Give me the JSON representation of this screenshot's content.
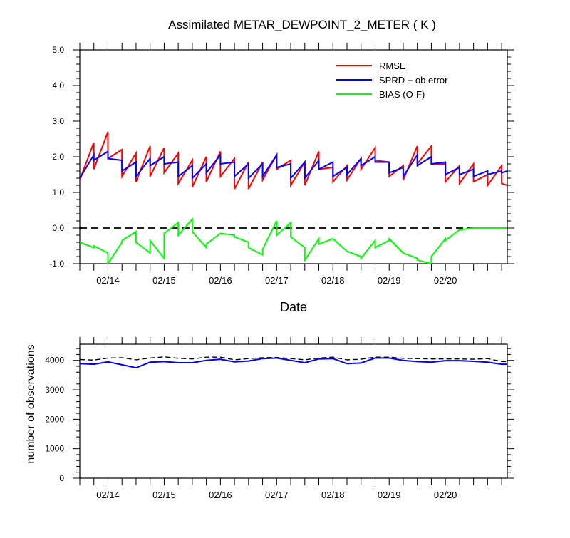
{
  "chart_data": [
    {
      "type": "line",
      "title": "Assimilated METAR_DEWPOINT_2_METER ( K )",
      "xlabel": "Date",
      "ylabel": "",
      "xlim": [
        0,
        7.6
      ],
      "ylim": [
        -1.0,
        5.0
      ],
      "y_ticks": [
        "5.0",
        "4.0",
        "3.0",
        "2.0",
        "1.0",
        "0.0",
        "-1.0"
      ],
      "y_tick_values": [
        5,
        4,
        3,
        2,
        1,
        0,
        -1
      ],
      "x_tick_labels": [
        "02/14",
        "02/15",
        "02/16",
        "02/17",
        "02/18",
        "02/19",
        "02/20"
      ],
      "x_tick_values": [
        0.5,
        1.5,
        2.5,
        3.5,
        4.5,
        5.5,
        6.5
      ],
      "legend_position": "top-right",
      "reference_line": 0.0,
      "colors": {
        "rmse": "#ff0000",
        "sprd": "#0000ff",
        "bias": "#00ff00",
        "reference": "#000000"
      },
      "series": [
        {
          "name": "RMSE",
          "x": [
            0.0,
            0.25,
            0.25,
            0.5,
            0.5,
            0.75,
            0.75,
            1.0,
            1.0,
            1.25,
            1.25,
            1.5,
            1.5,
            1.75,
            1.75,
            2.0,
            2.0,
            2.25,
            2.25,
            2.5,
            2.5,
            2.75,
            2.75,
            3.0,
            3.0,
            3.25,
            3.25,
            3.5,
            3.5,
            3.75,
            3.75,
            4.0,
            4.0,
            4.25,
            4.25,
            4.5,
            4.5,
            4.75,
            4.75,
            5.0,
            5.0,
            5.25,
            5.25,
            5.5,
            5.5,
            5.75,
            5.75,
            6.0,
            6.0,
            6.25,
            6.25,
            6.5,
            6.5,
            6.75,
            6.75,
            7.0,
            7.0,
            7.25,
            7.25,
            7.5,
            7.5,
            7.6
          ],
          "values": [
            1.35,
            2.4,
            1.65,
            2.7,
            1.95,
            2.2,
            1.45,
            2.1,
            1.3,
            2.3,
            1.45,
            2.25,
            1.55,
            2.1,
            1.25,
            1.9,
            1.15,
            2.0,
            1.3,
            2.15,
            1.45,
            1.95,
            1.1,
            1.85,
            1.1,
            1.85,
            1.35,
            2.05,
            1.65,
            1.9,
            1.2,
            1.85,
            1.2,
            2.15,
            1.65,
            1.7,
            1.3,
            1.75,
            1.35,
            1.95,
            1.65,
            2.25,
            1.9,
            1.85,
            1.45,
            1.75,
            1.35,
            2.3,
            1.8,
            2.3,
            1.8,
            1.8,
            1.3,
            1.75,
            1.25,
            1.8,
            1.3,
            1.5,
            1.2,
            1.75,
            1.25,
            1.2
          ]
        },
        {
          "name": "SPRD + ob error",
          "x": [
            0.0,
            0.25,
            0.25,
            0.5,
            0.5,
            0.75,
            0.75,
            1.0,
            1.0,
            1.25,
            1.25,
            1.5,
            1.5,
            1.75,
            1.75,
            2.0,
            2.0,
            2.25,
            2.25,
            2.5,
            2.5,
            2.75,
            2.75,
            3.0,
            3.0,
            3.25,
            3.25,
            3.5,
            3.5,
            3.75,
            3.75,
            4.0,
            4.0,
            4.25,
            4.25,
            4.5,
            4.5,
            4.75,
            4.75,
            5.0,
            5.0,
            5.25,
            5.25,
            5.5,
            5.5,
            5.75,
            5.75,
            6.0,
            6.0,
            6.25,
            6.25,
            6.5,
            6.5,
            6.75,
            6.75,
            7.0,
            7.0,
            7.25,
            7.25,
            7.5,
            7.5,
            7.6
          ],
          "values": [
            1.4,
            2.05,
            1.9,
            2.15,
            1.95,
            1.9,
            1.6,
            1.85,
            1.45,
            1.95,
            1.75,
            2.0,
            1.8,
            1.85,
            1.45,
            1.75,
            1.4,
            1.8,
            1.55,
            2.05,
            1.8,
            1.85,
            1.45,
            1.8,
            1.4,
            1.8,
            1.45,
            2.05,
            1.7,
            1.8,
            1.4,
            1.85,
            1.4,
            1.9,
            1.65,
            1.85,
            1.45,
            1.7,
            1.5,
            1.95,
            1.75,
            2.0,
            1.85,
            1.85,
            1.55,
            1.7,
            1.45,
            2.05,
            1.75,
            2.0,
            1.8,
            1.85,
            1.5,
            1.7,
            1.5,
            1.65,
            1.45,
            1.6,
            1.5,
            1.6,
            1.55,
            1.6
          ]
        },
        {
          "name": "BIAS (O-F)",
          "x": [
            0.0,
            0.25,
            0.25,
            0.5,
            0.5,
            0.75,
            0.75,
            1.0,
            1.0,
            1.25,
            1.25,
            1.5,
            1.5,
            1.75,
            1.75,
            2.0,
            2.0,
            2.25,
            2.25,
            2.5,
            2.5,
            2.75,
            2.75,
            3.0,
            3.0,
            3.25,
            3.25,
            3.5,
            3.5,
            3.75,
            3.75,
            4.0,
            4.0,
            4.25,
            4.25,
            4.5,
            4.5,
            4.75,
            4.75,
            5.0,
            5.0,
            5.25,
            5.25,
            5.5,
            5.5,
            5.75,
            5.75,
            6.0,
            6.0,
            6.25,
            6.25,
            6.5,
            6.5,
            6.75,
            6.75,
            7.0,
            7.0,
            7.25,
            7.25,
            7.5,
            7.5,
            7.6
          ],
          "values": [
            -0.4,
            -0.55,
            -0.5,
            -0.7,
            -1.0,
            -0.4,
            -0.35,
            -0.1,
            -0.4,
            -0.7,
            -0.35,
            -0.85,
            -0.15,
            0.15,
            -0.2,
            0.25,
            -0.1,
            -0.55,
            -0.45,
            -0.15,
            -0.15,
            -0.2,
            -0.25,
            -0.4,
            -0.55,
            -0.75,
            -0.6,
            0.2,
            -0.2,
            0.15,
            -0.25,
            -0.55,
            -0.9,
            -0.3,
            -0.45,
            -0.3,
            -0.3,
            -0.65,
            -0.65,
            -0.8,
            -0.85,
            -0.35,
            -0.55,
            -0.35,
            -0.3,
            -0.7,
            -0.7,
            -0.85,
            -0.9,
            -1.0,
            -0.8,
            -0.3,
            -0.35,
            -0.05,
            -0.05,
            0.0,
            0.0,
            0.0,
            0.0,
            0.0,
            0.0,
            0.0
          ]
        }
      ]
    },
    {
      "type": "line",
      "title": "",
      "xlabel": "",
      "ylabel": "number of observations",
      "xlim": [
        0,
        7.6
      ],
      "ylim": [
        0,
        4550
      ],
      "y_ticks": [
        "4000",
        "3000",
        "2000",
        "1000",
        "0"
      ],
      "y_tick_values": [
        4000,
        3000,
        2000,
        1000,
        0
      ],
      "x_tick_labels": [
        "02/14",
        "02/15",
        "02/16",
        "02/17",
        "02/18",
        "02/19",
        "02/20"
      ],
      "x_tick_values": [
        0.5,
        1.5,
        2.5,
        3.5,
        4.5,
        5.5,
        6.5
      ],
      "colors": {
        "used": "#0000ff",
        "possible": "#000000"
      },
      "series": [
        {
          "line_style": "solid",
          "x": [
            0.0,
            0.25,
            0.5,
            0.75,
            1.0,
            1.25,
            1.5,
            1.75,
            2.0,
            2.25,
            2.5,
            2.75,
            3.0,
            3.25,
            3.5,
            3.75,
            4.0,
            4.25,
            4.5,
            4.75,
            5.0,
            5.25,
            5.5,
            5.75,
            6.0,
            6.25,
            6.5,
            6.75,
            7.0,
            7.25,
            7.5,
            7.6
          ],
          "values": [
            3890,
            3870,
            3950,
            3850,
            3750,
            3940,
            3960,
            3920,
            3920,
            4000,
            4040,
            3950,
            3980,
            4060,
            4080,
            4000,
            3920,
            4050,
            4060,
            3890,
            3910,
            4080,
            4080,
            4000,
            3960,
            3940,
            3990,
            3990,
            3970,
            3940,
            3870,
            3870
          ]
        },
        {
          "line_style": "dashed",
          "x": [
            0.0,
            0.25,
            0.5,
            0.75,
            1.0,
            1.25,
            1.5,
            1.75,
            2.0,
            2.25,
            2.5,
            2.75,
            3.0,
            3.25,
            3.5,
            3.75,
            4.0,
            4.25,
            4.5,
            4.75,
            5.0,
            5.25,
            5.5,
            5.75,
            6.0,
            6.25,
            6.5,
            6.75,
            7.0,
            7.25,
            7.5,
            7.6
          ],
          "values": [
            4030,
            4010,
            4080,
            4090,
            4020,
            4080,
            4120,
            4070,
            4050,
            4110,
            4110,
            4020,
            4060,
            4090,
            4100,
            4060,
            4020,
            4080,
            4110,
            4020,
            4040,
            4110,
            4110,
            4070,
            4060,
            4050,
            4050,
            4050,
            4040,
            4060,
            3960,
            3960
          ]
        }
      ]
    }
  ]
}
